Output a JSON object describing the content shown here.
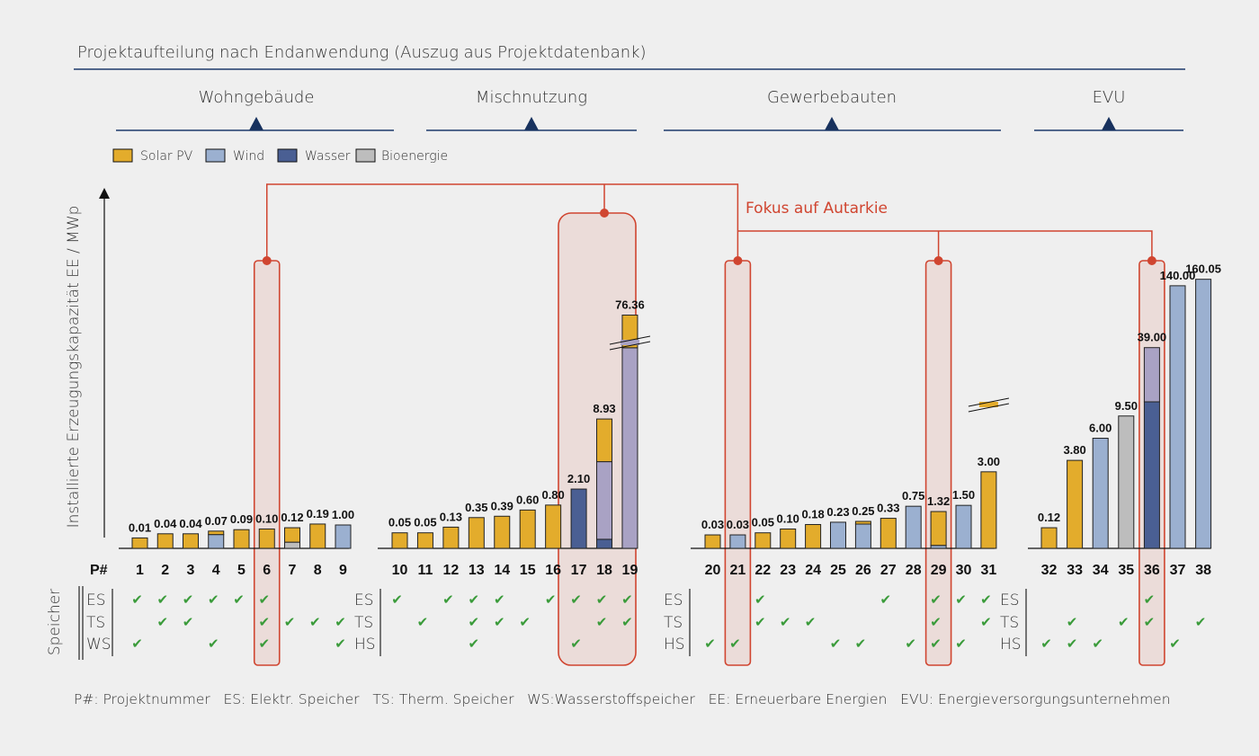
{
  "chart_data": {
    "type": "bar",
    "title": "Projektaufteilung nach Endanwendung (Auszug aus Projektdatenbank)",
    "ylabel": "Installierte Erzeugungskapazität EE / MWp",
    "annotation": "Fokus auf Autarkie",
    "p_label": "P#",
    "storage_title": "Speicher",
    "legend": [
      {
        "name": "Solar PV",
        "color": "#e3ac2c"
      },
      {
        "name": "Wind",
        "color": "#9bb0d0"
      },
      {
        "name": "Wasser",
        "color": "#4a5f93"
      },
      {
        "name": "Bioenergie",
        "color": "#bdbdbd"
      }
    ],
    "groups": [
      {
        "name": "Wohngebäude",
        "storage_labels": [
          "ES",
          "TS",
          "WS"
        ]
      },
      {
        "name": "Mischnutzung",
        "storage_labels": [
          "ES",
          "TS",
          "HS"
        ]
      },
      {
        "name": "Gewerbebauten",
        "storage_labels": [
          "ES",
          "TS",
          "HS"
        ]
      },
      {
        "name": "EVU",
        "storage_labels": [
          "ES",
          "TS",
          "HS"
        ]
      }
    ],
    "projects": [
      {
        "id": "1",
        "label": "0.01",
        "pv": 1,
        "ec": [
          1,
          0,
          1
        ]
      },
      {
        "id": "2",
        "label": "0.04",
        "pv": 1,
        "ec": [
          1,
          1,
          0
        ]
      },
      {
        "id": "3",
        "label": "0.04",
        "pv": 1,
        "ec": [
          1,
          1,
          0
        ]
      },
      {
        "id": "4",
        "label": "0.07",
        "pv": 0.2,
        "wind": 0.8,
        "ec": [
          1,
          0,
          1
        ]
      },
      {
        "id": "5",
        "label": "0.09",
        "pv": 1,
        "ec": [
          1,
          0,
          0
        ]
      },
      {
        "id": "6",
        "label": "0.10",
        "pv": 1,
        "ec": [
          1,
          1,
          1
        ]
      },
      {
        "id": "7",
        "label": "0.12",
        "pv": 0.7,
        "bio": 0.3,
        "ec": [
          0,
          1,
          0
        ]
      },
      {
        "id": "8",
        "label": "0.19",
        "pv": 1,
        "ec": [
          0,
          1,
          0
        ]
      },
      {
        "id": "9",
        "label": "1.00",
        "wind": 1,
        "ec": [
          0,
          1,
          1
        ]
      },
      {
        "id": "10",
        "label": "0.05",
        "pv": 1,
        "ec": [
          1,
          0,
          0
        ]
      },
      {
        "id": "11",
        "label": "0.05",
        "pv": 1,
        "ec": [
          0,
          1,
          0
        ]
      },
      {
        "id": "12",
        "label": "0.13",
        "pv": 1,
        "ec": [
          1,
          0,
          0
        ]
      },
      {
        "id": "13",
        "label": "0.35",
        "pv": 1,
        "ec": [
          1,
          1,
          1
        ]
      },
      {
        "id": "14",
        "label": "0.39",
        "pv": 1,
        "ec": [
          1,
          1,
          0
        ]
      },
      {
        "id": "15",
        "label": "0.60",
        "pv": 1,
        "ec": [
          0,
          1,
          0
        ]
      },
      {
        "id": "16",
        "label": "0.80",
        "pv": 1,
        "ec": [
          1,
          0,
          0
        ]
      },
      {
        "id": "17",
        "label": "2.10",
        "wasser": 1,
        "ec": [
          1,
          0,
          1
        ]
      },
      {
        "id": "18",
        "label": "8.93",
        "pv": 0.33,
        "wind": 0.6,
        "wasser": 0.07,
        "ec": [
          1,
          1,
          0
        ]
      },
      {
        "id": "19",
        "label": "76.36",
        "pv": 0.14,
        "wind": 0.86,
        "ec": [
          1,
          1,
          0
        ]
      },
      {
        "id": "20",
        "label": "0.03",
        "pv": 1,
        "ec": [
          0,
          0,
          1
        ]
      },
      {
        "id": "21",
        "label": "0.03",
        "wind": 1,
        "ec": [
          0,
          0,
          1
        ]
      },
      {
        "id": "22",
        "label": "0.05",
        "pv": 1,
        "ec": [
          1,
          1,
          0
        ]
      },
      {
        "id": "23",
        "label": "0.10",
        "pv": 1,
        "ec": [
          0,
          1,
          0
        ]
      },
      {
        "id": "24",
        "label": "0.18",
        "pv": 1,
        "ec": [
          0,
          1,
          0
        ]
      },
      {
        "id": "25",
        "label": "0.23",
        "wind": 1,
        "ec": [
          0,
          0,
          1
        ]
      },
      {
        "id": "26",
        "label": "0.25",
        "pv": 0.1,
        "wind": 0.9,
        "ec": [
          0,
          0,
          1
        ]
      },
      {
        "id": "27",
        "label": "0.33",
        "pv": 1,
        "ec": [
          1,
          0,
          0
        ]
      },
      {
        "id": "28",
        "label": "0.75",
        "wind": 1,
        "ec": [
          0,
          0,
          1
        ]
      },
      {
        "id": "29",
        "label": "1.32",
        "pv": 0.92,
        "wind": 0.08,
        "ec": [
          1,
          1,
          1
        ]
      },
      {
        "id": "30",
        "label": "1.50",
        "wind": 1,
        "ec": [
          1,
          0,
          1
        ]
      },
      {
        "id": "31",
        "label": "3.00",
        "pv": 1,
        "ec": [
          1,
          1,
          0
        ]
      },
      {
        "id": "32",
        "label": "0.12",
        "pv": 1,
        "ec": [
          0,
          0,
          1
        ]
      },
      {
        "id": "33",
        "label": "3.80",
        "pv": 1,
        "ec": [
          0,
          1,
          1
        ]
      },
      {
        "id": "34",
        "label": "6.00",
        "wind": 1,
        "ec": [
          0,
          0,
          1
        ]
      },
      {
        "id": "35",
        "label": "9.50",
        "bio": 1,
        "ec": [
          0,
          1,
          0
        ]
      },
      {
        "id": "36",
        "label": "39.00",
        "wind": 0.27,
        "wasser": 0.73,
        "ec": [
          1,
          1,
          0
        ]
      },
      {
        "id": "37",
        "label": "140.00",
        "wind": 1,
        "ec": [
          0,
          0,
          1
        ]
      },
      {
        "id": "38",
        "label": "160.05",
        "wind": 1,
        "ec": [
          0,
          1,
          0
        ]
      }
    ],
    "focus_projects": [
      "6",
      "18",
      "21",
      "29",
      "36"
    ],
    "footer": "P#: Projektnummer   ES: Elektr. Speicher   TS: Therm. Speicher   WS:Wasserstoffspeicher   EE: Erneuerbare Energien   EVU: Energieversorgungsunternehmen"
  }
}
